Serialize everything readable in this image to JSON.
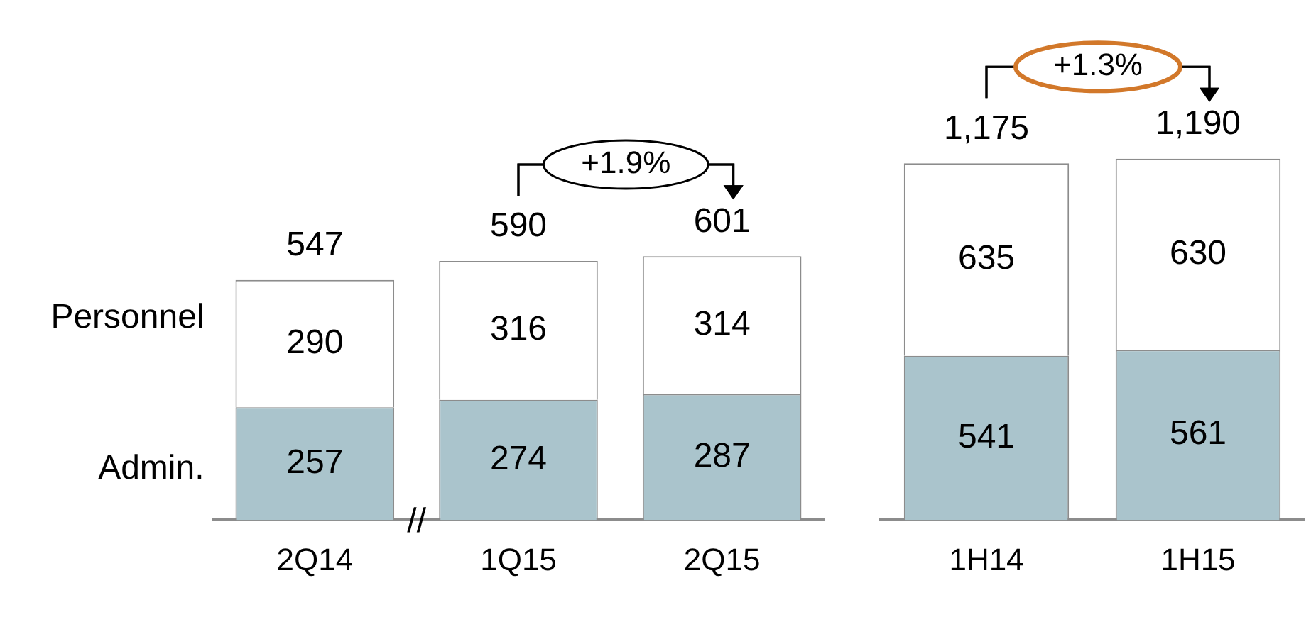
{
  "chart_data": [
    {
      "type": "bar",
      "stacked": true,
      "categories": [
        "2Q14",
        "1Q15",
        "2Q15"
      ],
      "series": [
        {
          "name": "Admin.",
          "color": "#aac4cc",
          "values": [
            257,
            274,
            287
          ]
        },
        {
          "name": "Personnel",
          "color": "#ffffff",
          "values": [
            290,
            316,
            314
          ]
        }
      ],
      "data_labels": true,
      "totals": [
        "547",
        "590",
        "601"
      ],
      "tick_labels": "x",
      "legend": false,
      "annotations": [
        "+1.9%",
        "//"
      ]
    },
    {
      "type": "bar",
      "stacked": true,
      "categories": [
        "1H14",
        "1H15"
      ],
      "series": [
        {
          "color": "#aac4cc",
          "values": [
            541,
            561
          ]
        },
        {
          "color": "#ffffff",
          "values": [
            635,
            630
          ]
        }
      ],
      "data_labels": true,
      "totals": [
        "1,175",
        "1,190"
      ],
      "tick_labels": "x",
      "legend": false,
      "annotations": [
        "+1.3%"
      ]
    }
  ]
}
